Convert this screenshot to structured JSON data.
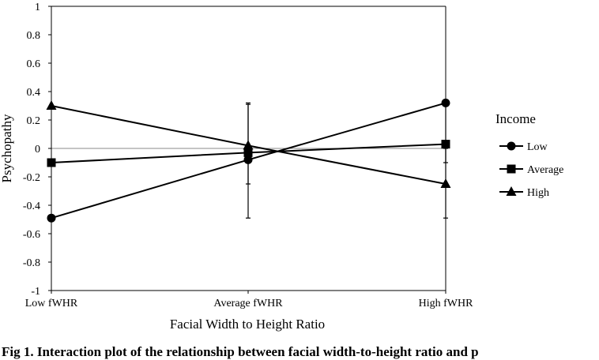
{
  "chart_data": {
    "type": "line",
    "title": "",
    "xlabel": "Facial Width to Height Ratio",
    "ylabel": "Psychopathy",
    "categories": [
      "Low fWHR",
      "Average fWHR",
      "High fWHR"
    ],
    "ylim": [
      -1,
      1
    ],
    "yticks": [
      "1",
      "0.8",
      "0.6",
      "0.4",
      "0.2",
      "0",
      "-0.2",
      "-0.4",
      "-0.6",
      "-0.8",
      "-1"
    ],
    "grid": false,
    "reference_line": 0,
    "legend": {
      "title": "Income",
      "placement": "right"
    },
    "series": [
      {
        "name": "Low",
        "marker": "circle",
        "values": [
          -0.49,
          -0.08,
          0.32
        ]
      },
      {
        "name": "Average",
        "marker": "square",
        "values": [
          -0.1,
          -0.03,
          0.03
        ]
      },
      {
        "name": "High",
        "marker": "triangle",
        "values": [
          0.3,
          0.02,
          -0.25
        ]
      }
    ],
    "error_bars": [
      {
        "category": "Average fWHR",
        "low": -0.49,
        "high": 0.32
      },
      {
        "category": "Average fWHR",
        "low": -0.25,
        "high": 0.31
      },
      {
        "category": "High fWHR",
        "low": -0.49,
        "high": 0.32
      },
      {
        "category": "High fWHR",
        "low": -0.1,
        "high": 0.0
      }
    ],
    "colors": {
      "line": "#000000",
      "zero_line": "#888888"
    }
  },
  "caption": "Fig 1. Interaction plot of the relationship between facial width-to-height ratio and p"
}
